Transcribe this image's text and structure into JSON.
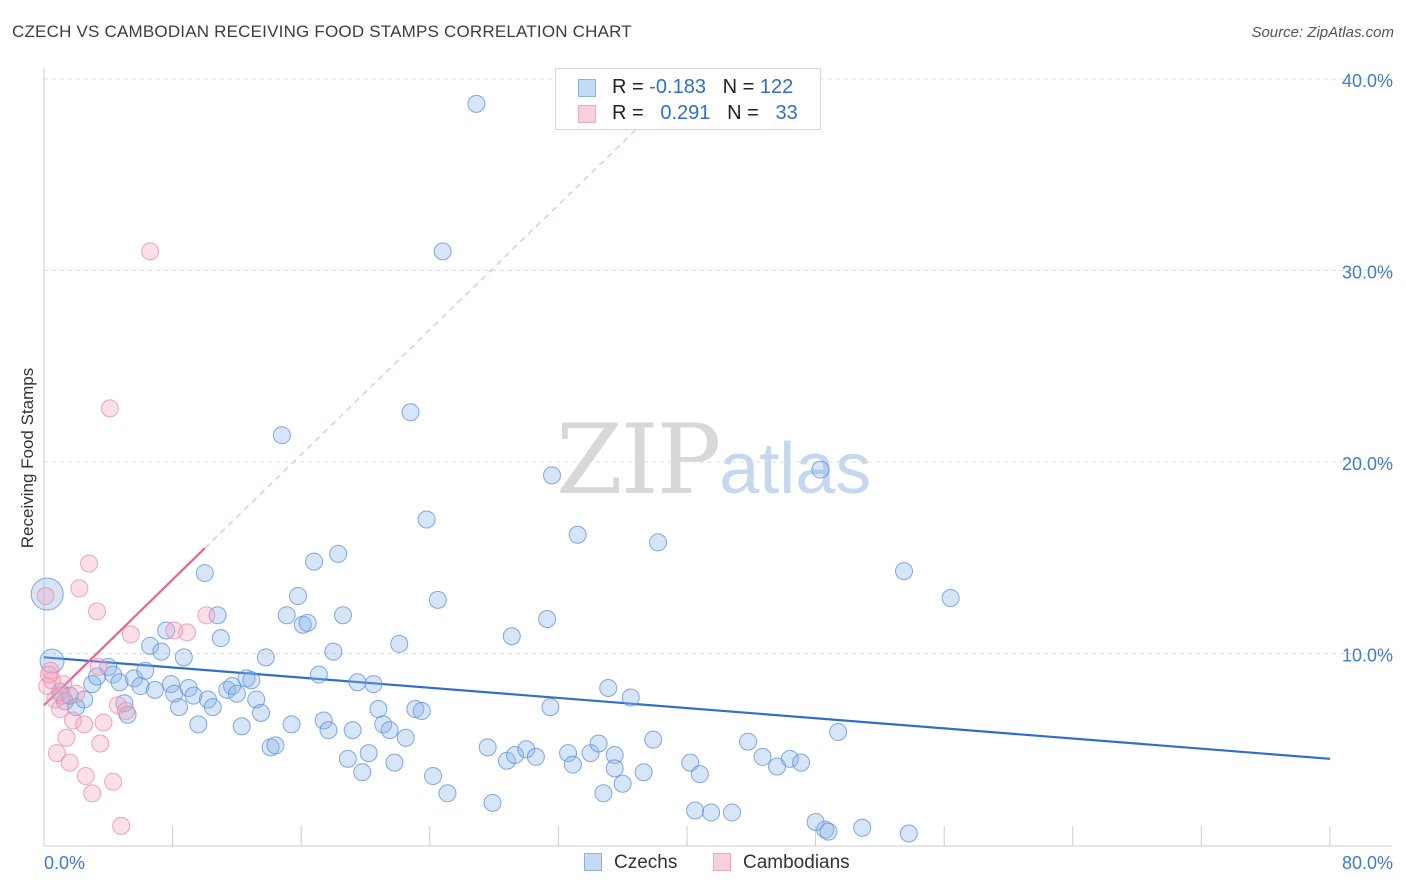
{
  "header": {
    "title": "CZECH VS CAMBODIAN RECEIVING FOOD STAMPS CORRELATION CHART",
    "source": "Source: ZipAtlas.com"
  },
  "legend": {
    "czechs": {
      "r_label": "R = ",
      "r_value": "-0.183",
      "n_label": "N = ",
      "n_value": "122",
      "color": "#8ab4e8"
    },
    "cambodians": {
      "r_label": "R = ",
      "r_value": "0.291",
      "n_label": "N = ",
      "n_value": "33",
      "color": "#f4a6c0"
    }
  },
  "bottom_legend": {
    "czechs": "Czechs",
    "cambodians": "Cambodians"
  },
  "watermark": {
    "zip": "ZIP",
    "atlas": "atlas"
  },
  "chart_data": {
    "type": "scatter",
    "title": "CZECH VS CAMBODIAN RECEIVING FOOD STAMPS CORRELATION CHART",
    "xlabel": "",
    "ylabel": "Receiving Food Stamps",
    "xlim": [
      0,
      80
    ],
    "ylim": [
      0,
      40
    ],
    "x_tick_labels": [
      "0.0%",
      "80.0%"
    ],
    "y_tick_labels": [
      "10.0%",
      "20.0%",
      "30.0%",
      "40.0%"
    ],
    "y_ticks": [
      10,
      20,
      30,
      40
    ],
    "grid": true,
    "series": [
      {
        "name": "Czechs",
        "color": "#8ab4e8",
        "stroke": "#5b8fd6",
        "trend": {
          "x": [
            0,
            80
          ],
          "y": [
            9.8,
            4.5
          ],
          "color": "#2f6fc9"
        },
        "points": [
          [
            0.2,
            13.1
          ],
          [
            0.5,
            9.6
          ],
          [
            1,
            8
          ],
          [
            1.3,
            7.5
          ],
          [
            1.6,
            7.8
          ],
          [
            2,
            7.2
          ],
          [
            2.5,
            7.6
          ],
          [
            3,
            8.4
          ],
          [
            3.3,
            8.8
          ],
          [
            4,
            9.3
          ],
          [
            4.3,
            8.9
          ],
          [
            4.7,
            8.5
          ],
          [
            5,
            7.4
          ],
          [
            5.2,
            6.8
          ],
          [
            5.6,
            8.7
          ],
          [
            6,
            8.3
          ],
          [
            6.3,
            9.1
          ],
          [
            6.6,
            10.4
          ],
          [
            6.9,
            8.1
          ],
          [
            7.3,
            10.1
          ],
          [
            7.6,
            11.2
          ],
          [
            7.9,
            8.4
          ],
          [
            8.1,
            7.9
          ],
          [
            8.4,
            7.2
          ],
          [
            8.7,
            9.8
          ],
          [
            9,
            8.2
          ],
          [
            9.3,
            7.8
          ],
          [
            9.6,
            6.3
          ],
          [
            10,
            14.2
          ],
          [
            10.2,
            7.6
          ],
          [
            10.5,
            7.2
          ],
          [
            10.8,
            12
          ],
          [
            11,
            10.8
          ],
          [
            11.4,
            8.1
          ],
          [
            11.7,
            8.3
          ],
          [
            12,
            7.9
          ],
          [
            12.3,
            6.2
          ],
          [
            12.6,
            8.7
          ],
          [
            12.9,
            8.6
          ],
          [
            13.2,
            7.6
          ],
          [
            13.5,
            6.9
          ],
          [
            13.8,
            9.8
          ],
          [
            14.1,
            5.1
          ],
          [
            14.4,
            5.2
          ],
          [
            14.8,
            21.4
          ],
          [
            15.1,
            12
          ],
          [
            15.4,
            6.3
          ],
          [
            15.8,
            13
          ],
          [
            16.1,
            11.5
          ],
          [
            16.4,
            11.6
          ],
          [
            16.8,
            14.8
          ],
          [
            17.1,
            8.9
          ],
          [
            17.4,
            6.5
          ],
          [
            17.7,
            6
          ],
          [
            18,
            10.1
          ],
          [
            18.3,
            15.2
          ],
          [
            18.6,
            12
          ],
          [
            18.9,
            4.5
          ],
          [
            19.2,
            6
          ],
          [
            19.5,
            8.5
          ],
          [
            19.8,
            3.8
          ],
          [
            20.2,
            4.8
          ],
          [
            20.5,
            8.4
          ],
          [
            20.8,
            7.1
          ],
          [
            21.1,
            6.3
          ],
          [
            21.5,
            6
          ],
          [
            21.8,
            4.3
          ],
          [
            22.1,
            10.5
          ],
          [
            22.5,
            5.6
          ],
          [
            22.8,
            22.6
          ],
          [
            23.1,
            7.1
          ],
          [
            23.5,
            7
          ],
          [
            23.8,
            17
          ],
          [
            24.2,
            3.6
          ],
          [
            24.5,
            12.8
          ],
          [
            24.8,
            31
          ],
          [
            25.1,
            2.7
          ],
          [
            26.9,
            38.7
          ],
          [
            27.6,
            5.1
          ],
          [
            27.9,
            2.2
          ],
          [
            28.8,
            4.4
          ],
          [
            29.1,
            10.9
          ],
          [
            29.3,
            4.7
          ],
          [
            30,
            5
          ],
          [
            30.6,
            4.6
          ],
          [
            31.3,
            11.8
          ],
          [
            31.6,
            19.3
          ],
          [
            32.6,
            4.8
          ],
          [
            32.9,
            4.2
          ],
          [
            33.2,
            16.2
          ],
          [
            34,
            4.8
          ],
          [
            34.5,
            5.3
          ],
          [
            34.8,
            2.7
          ],
          [
            35.1,
            8.2
          ],
          [
            35.5,
            4.7
          ],
          [
            36,
            3.2
          ],
          [
            36.5,
            7.7
          ],
          [
            37.3,
            3.8
          ],
          [
            37.9,
            5.5
          ],
          [
            38.2,
            15.8
          ],
          [
            40.2,
            4.3
          ],
          [
            40.8,
            3.7
          ],
          [
            40.5,
            1.8
          ],
          [
            41.5,
            1.7
          ],
          [
            42.8,
            1.7
          ],
          [
            43.8,
            5.4
          ],
          [
            44.7,
            4.6
          ],
          [
            45.6,
            4.1
          ],
          [
            46.4,
            4.5
          ],
          [
            47.1,
            4.3
          ],
          [
            48,
            1.2
          ],
          [
            48.3,
            19.6
          ],
          [
            48.6,
            0.8
          ],
          [
            48.8,
            0.7
          ],
          [
            49.4,
            5.9
          ],
          [
            50.9,
            0.9
          ],
          [
            53.5,
            14.3
          ],
          [
            53.8,
            0.6
          ],
          [
            56.4,
            12.9
          ],
          [
            31.5,
            7.2
          ],
          [
            35.5,
            4
          ]
        ]
      },
      {
        "name": "Cambodians",
        "color": "#f4a6c0",
        "stroke": "#e88aab",
        "trend": {
          "x": [
            0,
            10
          ],
          "y": [
            7.3,
            15.5
          ],
          "color": "#e8638e"
        },
        "trend_extended": {
          "x": [
            10,
            37
          ],
          "y": [
            15.5,
            37.5
          ]
        },
        "points": [
          [
            0.1,
            13
          ],
          [
            0.2,
            8.3
          ],
          [
            0.4,
            9.1
          ],
          [
            0.5,
            8.6
          ],
          [
            0.7,
            7.6
          ],
          [
            0.8,
            4.8
          ],
          [
            1,
            7.1
          ],
          [
            1.2,
            8.4
          ],
          [
            1.4,
            5.6
          ],
          [
            1.6,
            4.3
          ],
          [
            1.8,
            6.5
          ],
          [
            2,
            7.9
          ],
          [
            2.2,
            13.4
          ],
          [
            2.5,
            6.3
          ],
          [
            2.6,
            3.6
          ],
          [
            2.8,
            14.7
          ],
          [
            3,
            2.7
          ],
          [
            3.3,
            12.2
          ],
          [
            3.5,
            5.3
          ],
          [
            3.7,
            6.4
          ],
          [
            4.1,
            22.8
          ],
          [
            4.3,
            3.3
          ],
          [
            4.6,
            7.3
          ],
          [
            4.8,
            1
          ],
          [
            5.1,
            7
          ],
          [
            5.4,
            11
          ],
          [
            6.6,
            31
          ],
          [
            8.1,
            11.2
          ],
          [
            8.9,
            11.1
          ],
          [
            10.1,
            12
          ],
          [
            0.3,
            8.9
          ],
          [
            1.1,
            7.8
          ],
          [
            3.4,
            9.3
          ]
        ]
      }
    ]
  }
}
